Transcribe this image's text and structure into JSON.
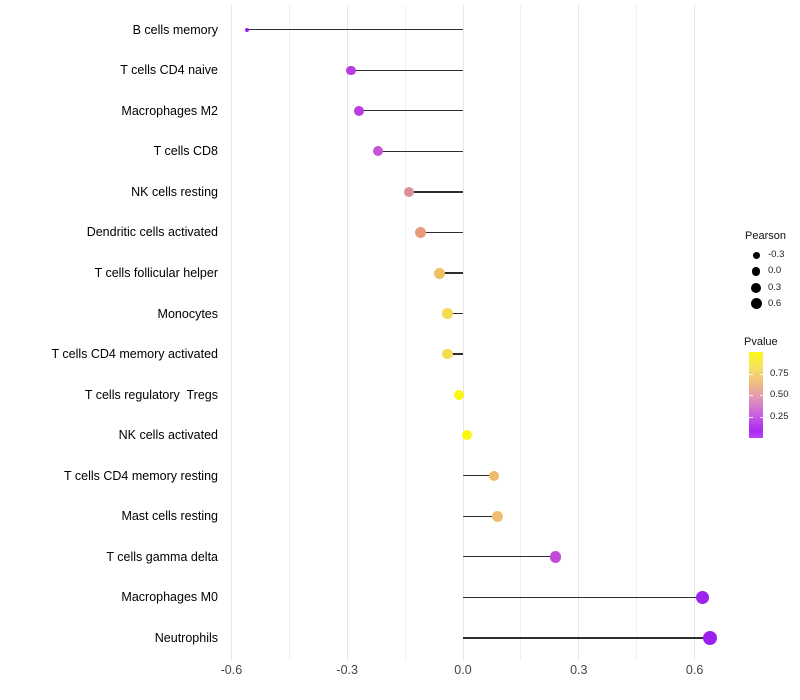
{
  "chart_data": {
    "type": "lollipop",
    "title": "",
    "xlabel": "",
    "ylabel": "",
    "xlim": [
      -0.62,
      0.7
    ],
    "x_tick_labels": [
      "-0.6",
      "-0.3",
      "0.0",
      "0.3",
      "0.6"
    ],
    "x_tick_values": [
      -0.6,
      -0.3,
      0.0,
      0.3,
      0.6
    ],
    "x_minor_values": [
      -0.45,
      -0.15,
      0.15,
      0.45
    ],
    "grid": "vertical light-gray major and minor gridlines on white background",
    "points": [
      {
        "label": "B cells memory",
        "pearson": -0.56,
        "pvalue": 0.02,
        "color": "#9B1FF0",
        "size": 4
      },
      {
        "label": "T cells CD4 naive",
        "pearson": -0.29,
        "pvalue": 0.13,
        "color": "#B93BE3",
        "size": 9.5
      },
      {
        "label": "Macrophages M2",
        "pearson": -0.27,
        "pvalue": 0.13,
        "color": "#BA3EDF",
        "size": 10
      },
      {
        "label": "T cells CD8",
        "pearson": -0.22,
        "pvalue": 0.18,
        "color": "#C554D2",
        "size": 10
      },
      {
        "label": "NK cells resting",
        "pearson": -0.14,
        "pvalue": 0.42,
        "color": "#DE8E9B",
        "size": 10.5
      },
      {
        "label": "Dendritic cells activated",
        "pearson": -0.11,
        "pvalue": 0.55,
        "color": "#E89A7D",
        "size": 11
      },
      {
        "label": "T cells follicular helper",
        "pearson": -0.06,
        "pvalue": 0.72,
        "color": "#EFC163",
        "size": 11
      },
      {
        "label": "Monocytes",
        "pearson": -0.04,
        "pvalue": 0.8,
        "color": "#F3DA50",
        "size": 10.5
      },
      {
        "label": "T cells CD4 memory activated",
        "pearson": -0.04,
        "pvalue": 0.81,
        "color": "#F4DC4E",
        "size": 10.5
      },
      {
        "label": "T cells regulatory  Tregs",
        "pearson": -0.01,
        "pvalue": 0.97,
        "color": "#FAF60D",
        "size": 10
      },
      {
        "label": "NK cells activated",
        "pearson": 0.01,
        "pvalue": 0.97,
        "color": "#FBF70B",
        "size": 10
      },
      {
        "label": "T cells CD4 memory resting",
        "pearson": 0.08,
        "pvalue": 0.66,
        "color": "#EFBA69",
        "size": 10.5
      },
      {
        "label": "Mast cells resting",
        "pearson": 0.09,
        "pvalue": 0.64,
        "color": "#F0BD74",
        "size": 11
      },
      {
        "label": "T cells gamma delta",
        "pearson": 0.24,
        "pvalue": 0.16,
        "color": "#C24BDA",
        "size": 11.5
      },
      {
        "label": "Macrophages M0",
        "pearson": 0.62,
        "pvalue": 0.03,
        "color": "#9C22EE",
        "size": 13
      },
      {
        "label": "Neutrophils",
        "pearson": 0.64,
        "pvalue": 0.02,
        "color": "#9D1FF0",
        "size": 14
      }
    ],
    "legend": {
      "position": "right",
      "size": {
        "title": "Pearson",
        "dot_color": "#000000",
        "entries": [
          {
            "label": "-0.3",
            "d": 7
          },
          {
            "label": "0.0",
            "d": 8.5
          },
          {
            "label": "0.3",
            "d": 10
          },
          {
            "label": "0.6",
            "d": 11
          }
        ]
      },
      "color": {
        "title": "Pvalue",
        "tick_labels": [
          "0.75",
          "0.50",
          "0.25"
        ],
        "tick_values": [
          0.75,
          0.5,
          0.25
        ],
        "gradient_stops": [
          {
            "p": 1.0,
            "hex": "#FDF913"
          },
          {
            "p": 0.8,
            "hex": "#F6DE69"
          },
          {
            "p": 0.62,
            "hex": "#EFB984"
          },
          {
            "p": 0.45,
            "hex": "#E092BC"
          },
          {
            "p": 0.25,
            "hex": "#C75BE3"
          },
          {
            "p": 0.08,
            "hex": "#A82BF2"
          },
          {
            "p": 0.0,
            "hex": "#BC45F5"
          }
        ]
      }
    },
    "colors": {
      "stem": "#2E2E2E",
      "grid_major": "#E6E6E6",
      "grid_minor": "#F0F0F0",
      "label_text": "#000000",
      "tick_text": "#444444",
      "background": "#FFFFFF"
    }
  }
}
